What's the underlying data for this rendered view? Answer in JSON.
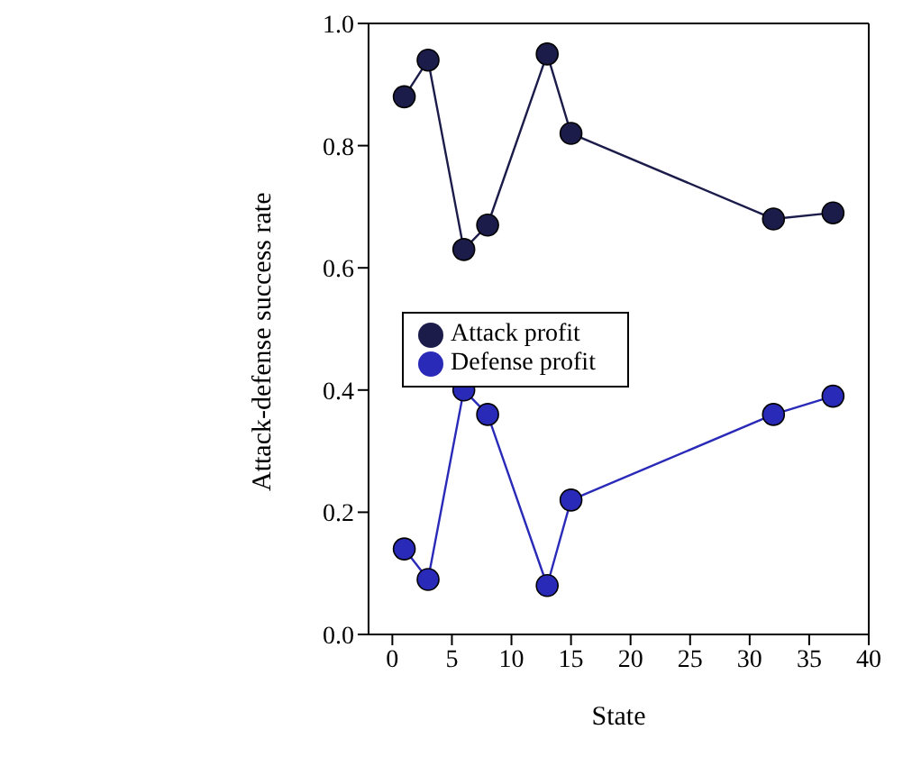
{
  "chart_data": {
    "type": "line",
    "xlabel": "State",
    "ylabel": "Attack-defense success rate",
    "x": [
      1,
      3,
      6,
      8,
      13,
      15,
      32,
      37
    ],
    "series": [
      {
        "name": "Attack profit",
        "color": "#1c1c4a",
        "values": [
          0.88,
          0.94,
          0.63,
          0.67,
          0.95,
          0.82,
          0.68,
          0.69
        ]
      },
      {
        "name": "Defense profit",
        "color": "#2a2ab8",
        "values": [
          0.14,
          0.09,
          0.4,
          0.36,
          0.08,
          0.22,
          0.36,
          0.39
        ]
      }
    ],
    "xlim": [
      -2,
      40
    ],
    "xticks": [
      0,
      5,
      10,
      15,
      20,
      25,
      30,
      35,
      40
    ],
    "ylim": [
      0,
      1
    ],
    "yticks": [
      {
        "value": 0,
        "label": "0.0"
      },
      {
        "value": 0.2,
        "label": "0.2"
      },
      {
        "value": 0.4,
        "label": "0.4"
      },
      {
        "value": 0.6,
        "label": "0.6"
      },
      {
        "value": 0.8,
        "label": "0.8"
      },
      {
        "value": 1,
        "label": "1.0"
      }
    ],
    "grid": false,
    "legend": "center",
    "marker": "circle",
    "line_style": "solid"
  }
}
